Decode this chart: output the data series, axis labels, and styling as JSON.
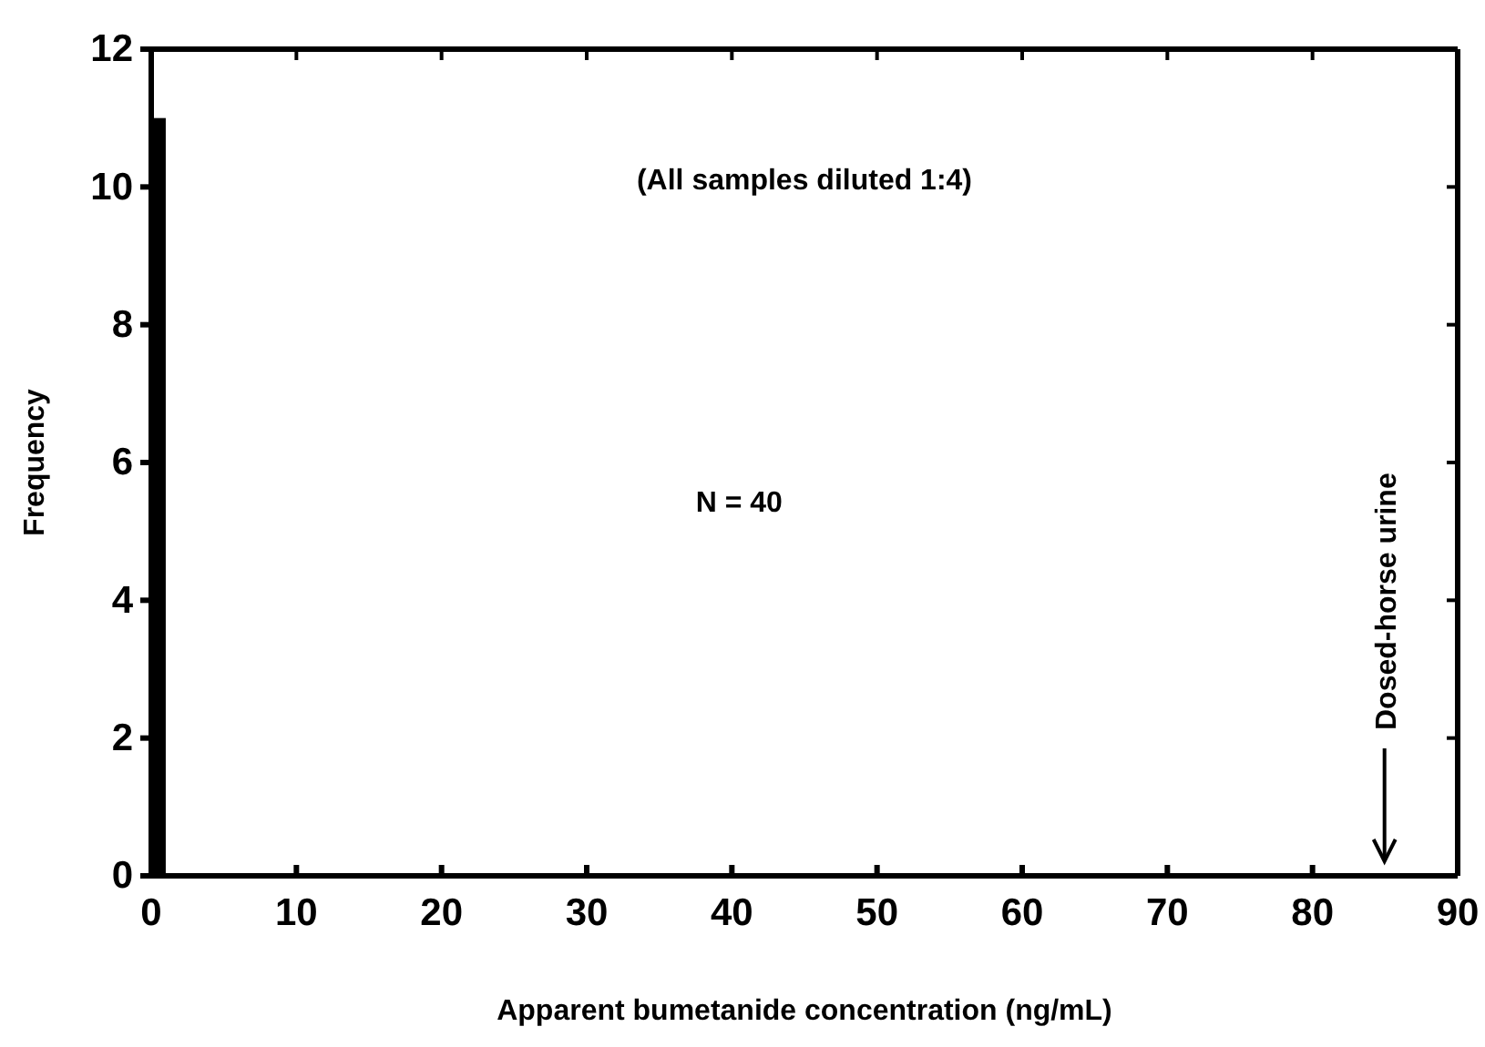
{
  "chart_data": {
    "type": "histogram",
    "xlabel": "Apparent bumetanide concentration (ng/mL)",
    "ylabel": "Frequency",
    "bins": [
      0,
      1
    ],
    "values": [
      11
    ],
    "color": "#000000",
    "xlim": [
      0,
      90
    ],
    "xticks": [
      0,
      10,
      20,
      30,
      40,
      50,
      60,
      70,
      80,
      90
    ],
    "ylim": [
      0,
      12
    ],
    "yticks": [
      0,
      2,
      4,
      6,
      8,
      10,
      12
    ],
    "grid": false,
    "annotations": [
      "(All samples diluted 1:4)",
      "N = 40",
      "Dosed-horse urine"
    ]
  }
}
